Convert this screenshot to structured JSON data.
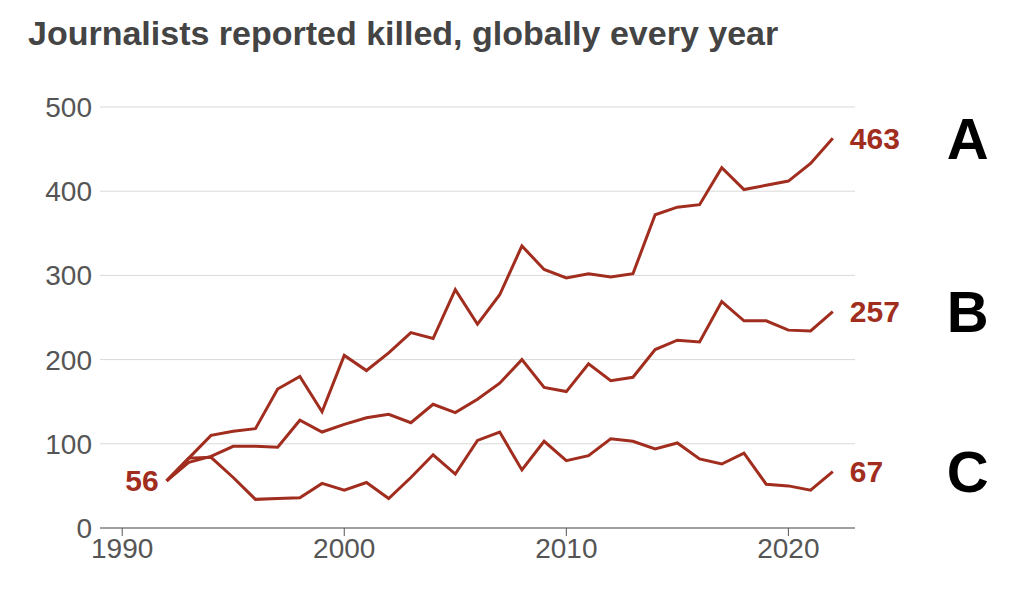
{
  "chart_data": {
    "type": "line",
    "title": "Journalists reported killed, globally every year",
    "x": [
      1992,
      1993,
      1994,
      1995,
      1996,
      1997,
      1998,
      1999,
      2000,
      2001,
      2002,
      2003,
      2004,
      2005,
      2006,
      2007,
      2008,
      2009,
      2010,
      2011,
      2012,
      2013,
      2014,
      2015,
      2016,
      2017,
      2018,
      2019,
      2020,
      2021,
      2022
    ],
    "series": [
      {
        "name": "A",
        "color": "#a12d1f",
        "values": [
          56,
          83,
          110,
          115,
          118,
          165,
          180,
          138,
          205,
          187,
          208,
          232,
          225,
          283,
          242,
          277,
          335,
          307,
          297,
          302,
          298,
          302,
          372,
          381,
          384,
          428,
          402,
          407,
          412,
          433,
          463
        ]
      },
      {
        "name": "B",
        "color": "#a12d1f",
        "values": [
          56,
          78,
          85,
          97,
          97,
          96,
          128,
          114,
          123,
          131,
          135,
          125,
          147,
          137,
          153,
          172,
          200,
          167,
          162,
          195,
          175,
          179,
          212,
          223,
          221,
          269,
          246,
          246,
          235,
          234,
          257
        ]
      },
      {
        "name": "C",
        "color": "#a12d1f",
        "values": [
          56,
          83,
          84,
          60,
          34,
          35,
          36,
          53,
          45,
          54,
          35,
          60,
          87,
          64,
          104,
          114,
          69,
          103,
          80,
          86,
          106,
          103,
          94,
          101,
          82,
          76,
          89,
          52,
          50,
          45,
          67
        ]
      }
    ],
    "xlim": [
      1989,
      2023
    ],
    "xticks": [
      1990,
      2000,
      2010,
      2020
    ],
    "ylim": [
      0,
      500
    ],
    "yticks": [
      0,
      100,
      200,
      300,
      400,
      500
    ],
    "grid": true
  }
}
